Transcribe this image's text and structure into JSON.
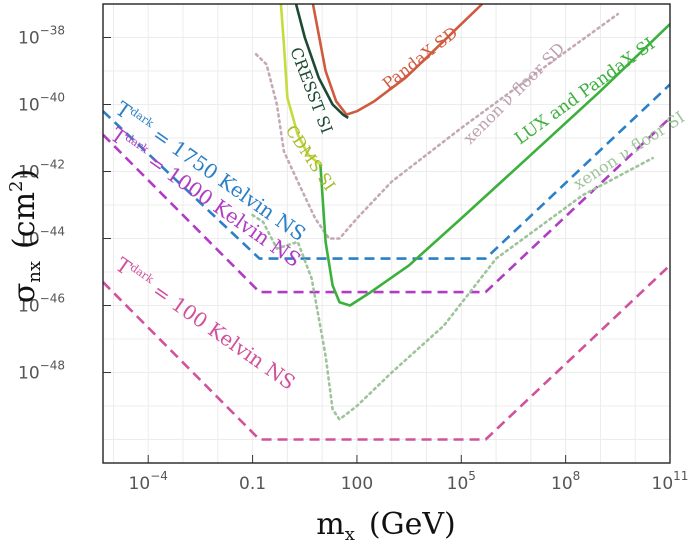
{
  "chart_data": {
    "type": "line",
    "xscale": "log",
    "yscale": "log",
    "xlim_log10": [
      -5.3,
      11
    ],
    "ylim_log10": [
      -50.7,
      -37
    ],
    "x_ticks": [
      {
        "log10": -4,
        "label_base": "10",
        "label_exp": "−4"
      },
      {
        "log10": -1,
        "label_base": "0.1",
        "label_exp": ""
      },
      {
        "log10": 2,
        "label_base": "100",
        "label_exp": ""
      },
      {
        "log10": 5,
        "label_base": "10",
        "label_exp": "5"
      },
      {
        "log10": 8,
        "label_base": "10",
        "label_exp": "8"
      },
      {
        "log10": 11,
        "label_base": "10",
        "label_exp": "11"
      }
    ],
    "y_ticks": [
      {
        "log10": -38,
        "label_base": "10",
        "label_exp": "−38"
      },
      {
        "log10": -40,
        "label_base": "10",
        "label_exp": "−40"
      },
      {
        "log10": -42,
        "label_base": "10",
        "label_exp": "−42"
      },
      {
        "log10": -44,
        "label_base": "10",
        "label_exp": "−44"
      },
      {
        "log10": -46,
        "label_base": "10",
        "label_exp": "−46"
      },
      {
        "log10": -48,
        "label_base": "10",
        "label_exp": "−48"
      }
    ],
    "xlabel": {
      "sym": "m",
      "sub": "x",
      "unit": "(GeV)"
    },
    "ylabel": {
      "sym": "σ",
      "sub": "nx",
      "unit_pre": "(cm",
      "unit_exp": "2",
      "unit_post": ")"
    },
    "series": [
      {
        "name": "T 1750 Kelvin NS",
        "color": "#2b7fc7",
        "dash": "10,6",
        "points_log10": [
          [
            -5.3,
            -40.2
          ],
          [
            -0.8,
            -44.6
          ],
          [
            5.7,
            -44.6
          ],
          [
            11,
            -39.4
          ]
        ]
      },
      {
        "name": "T 1000 Kelvin NS",
        "color": "#b03cc4",
        "dash": "10,6",
        "points_log10": [
          [
            -5.3,
            -40.9
          ],
          [
            -0.8,
            -45.6
          ],
          [
            5.7,
            -45.6
          ],
          [
            11,
            -40.4
          ]
        ]
      },
      {
        "name": "T 100 Kelvin NS",
        "color": "#d0529b",
        "dash": "10,6",
        "points_log10": [
          [
            -5.3,
            -45.3
          ],
          [
            -0.8,
            -50.0
          ],
          [
            5.7,
            -50.0
          ],
          [
            11,
            -44.8
          ]
        ]
      },
      {
        "name": "PandaX SD",
        "color": "#cf5a3e",
        "dash": "",
        "points_log10": [
          [
            0.7,
            -36.8
          ],
          [
            1.1,
            -39.0
          ],
          [
            1.4,
            -39.9
          ],
          [
            1.7,
            -40.3
          ],
          [
            2.0,
            -40.2
          ],
          [
            2.5,
            -39.9
          ],
          [
            3.4,
            -39.2
          ],
          [
            4.2,
            -38.4
          ],
          [
            5.0,
            -37.6
          ],
          [
            5.6,
            -37.0
          ]
        ]
      },
      {
        "name": "CRESST SI",
        "color": "#1d4a33",
        "dash": "",
        "points_log10": [
          [
            0.2,
            -36.8
          ],
          [
            0.5,
            -38.0
          ],
          [
            0.9,
            -39.2
          ],
          [
            1.3,
            -40.0
          ],
          [
            1.6,
            -40.3
          ],
          [
            1.75,
            -40.4
          ]
        ]
      },
      {
        "name": "CDMS SI",
        "color": "#c4dc3c",
        "dash": "",
        "points_log10": [
          [
            -0.2,
            -36.8
          ],
          [
            -0.1,
            -38.2
          ],
          [
            0.0,
            -39.8
          ],
          [
            0.3,
            -40.9
          ],
          [
            0.6,
            -41.5
          ],
          [
            0.95,
            -41.8
          ]
        ]
      },
      {
        "name": "xenon ν floor SD",
        "color": "#c4aab7",
        "dash": "2,4",
        "points_log10": [
          [
            -0.9,
            -38.5
          ],
          [
            -0.6,
            -38.8
          ],
          [
            -0.3,
            -40.0
          ],
          [
            -0.1,
            -41.4
          ],
          [
            0.3,
            -42.3
          ],
          [
            0.8,
            -43.4
          ],
          [
            1.2,
            -44.0
          ],
          [
            1.5,
            -44.0
          ],
          [
            2.0,
            -43.4
          ],
          [
            3.0,
            -42.3
          ],
          [
            5.0,
            -40.7
          ],
          [
            7.5,
            -38.8
          ],
          [
            9.5,
            -37.3
          ]
        ]
      },
      {
        "name": "xenon ν floor SI",
        "color": "#9fc49b",
        "dash": "2,4",
        "points_log10": [
          [
            -1.0,
            -43.3
          ],
          [
            -0.7,
            -43.5
          ],
          [
            -0.3,
            -44.3
          ],
          [
            0.3,
            -44.1
          ],
          [
            0.7,
            -45.2
          ],
          [
            1.1,
            -47.5
          ],
          [
            1.3,
            -49.1
          ],
          [
            1.5,
            -49.4
          ],
          [
            2.0,
            -49.0
          ],
          [
            3.0,
            -48.0
          ],
          [
            4.5,
            -46.6
          ],
          [
            6.0,
            -44.6
          ],
          [
            8.5,
            -42.7
          ],
          [
            10.5,
            -41.6
          ]
        ]
      },
      {
        "name": "LUX and PandaX SI",
        "color": "#3cb03c",
        "dash": "",
        "points_log10": [
          [
            0.95,
            -41.8
          ],
          [
            1.1,
            -44.1
          ],
          [
            1.3,
            -45.4
          ],
          [
            1.5,
            -45.9
          ],
          [
            1.8,
            -46.0
          ],
          [
            2.4,
            -45.6
          ],
          [
            3.5,
            -44.8
          ],
          [
            5.0,
            -43.4
          ],
          [
            7.0,
            -41.5
          ],
          [
            9.0,
            -39.6
          ],
          [
            11,
            -37.6
          ]
        ]
      }
    ],
    "labels": [
      {
        "series": "PandaX SD",
        "text": "PandaX SD"
      },
      {
        "series": "CRESST SI",
        "text": "CRESST SI"
      },
      {
        "series": "CDMS SI",
        "text": "CDMS SI"
      },
      {
        "series": "xenon ν floor SD",
        "text": "xenon ν floor SD"
      },
      {
        "series": "LUX and PandaX SI",
        "text": "LUX and PandaX SI"
      },
      {
        "series": "xenon ν floor SI",
        "text": "xenon ν floor SI"
      },
      {
        "series": "T 1750 Kelvin NS",
        "T": "T",
        "sup": "dark",
        "eq": " = 1750 Kelvin NS"
      },
      {
        "series": "T 1000 Kelvin NS",
        "T": "T",
        "sup": "dark",
        "eq": " = 1000 Kelvin NS"
      },
      {
        "series": "T 100 Kelvin NS",
        "T": "T",
        "sup": "dark",
        "eq": " = 100 Kelvin NS"
      }
    ]
  }
}
